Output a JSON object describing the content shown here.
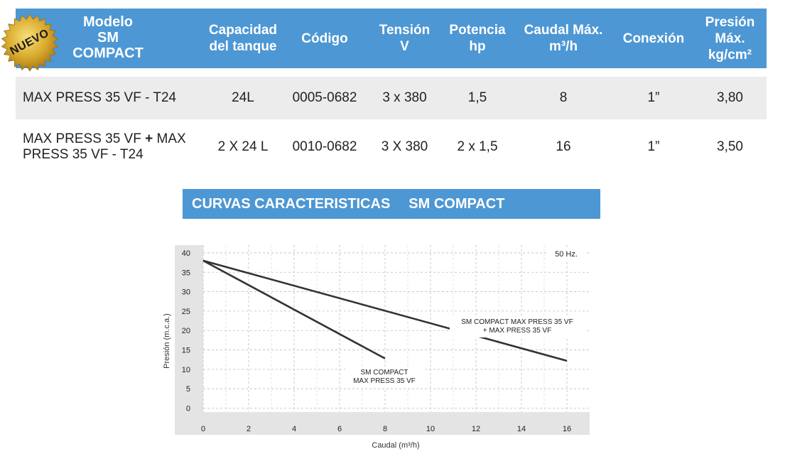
{
  "badge": {
    "text": "NUEVO"
  },
  "table": {
    "headers": {
      "model_line1": "Modelo",
      "model_line2": "SM",
      "model_line3": "COMPACT",
      "capacity": "Capacidad\ndel tanque",
      "code": "Código",
      "voltage": "Tensión\nV",
      "power": "Potencia\nhp",
      "flow": "Caudal Máx.\nm³/h",
      "connection": "Conexión",
      "pressure": "Presión\nMáx.\nkg/cm²"
    },
    "rows": [
      {
        "model_a": "MAX PRESS 35 VF - T24",
        "plus": "",
        "model_b": "",
        "capacity": "24L",
        "code": "0005-0682",
        "voltage": "3 x 380",
        "power": "1,5",
        "flow": "8",
        "connection": "1”",
        "pressure": "3,80"
      },
      {
        "model_a": "MAX PRESS 35 VF ",
        "plus": "+",
        "model_b": " MAX PRESS 35 VF - T24",
        "capacity": "2 X 24 L",
        "code": "0010-0682",
        "voltage": "3 X 380",
        "power": "2 x 1,5",
        "flow": "16",
        "connection": "1”",
        "pressure": "3,50"
      }
    ]
  },
  "banner": {
    "part1": "CURVAS CARACTERISTICAS",
    "part2": "SM COMPACT"
  },
  "chart_data": {
    "type": "line",
    "frequency_label": "50 Hz.",
    "xlabel": "Caudal (m³/h)",
    "ylabel": "Presión (m.c.a.)",
    "xlim": [
      0,
      17
    ],
    "ylim": [
      -1,
      42
    ],
    "x_ticks": [
      0,
      2,
      4,
      6,
      8,
      10,
      12,
      14,
      16
    ],
    "y_ticks": [
      0,
      5,
      10,
      15,
      20,
      25,
      30,
      35,
      40
    ],
    "grid": true,
    "series": [
      {
        "name": "SM COMPACT\nMAX PRESS 35 VF",
        "x": [
          0,
          8
        ],
        "y": [
          38,
          12.8
        ],
        "color": "#333333"
      },
      {
        "name": "SM COMPACT MAX PRESS 35 VF\n+ MAX PRESS 35 VF",
        "x": [
          0,
          16
        ],
        "y": [
          38,
          12.2
        ],
        "color": "#333333"
      }
    ]
  }
}
